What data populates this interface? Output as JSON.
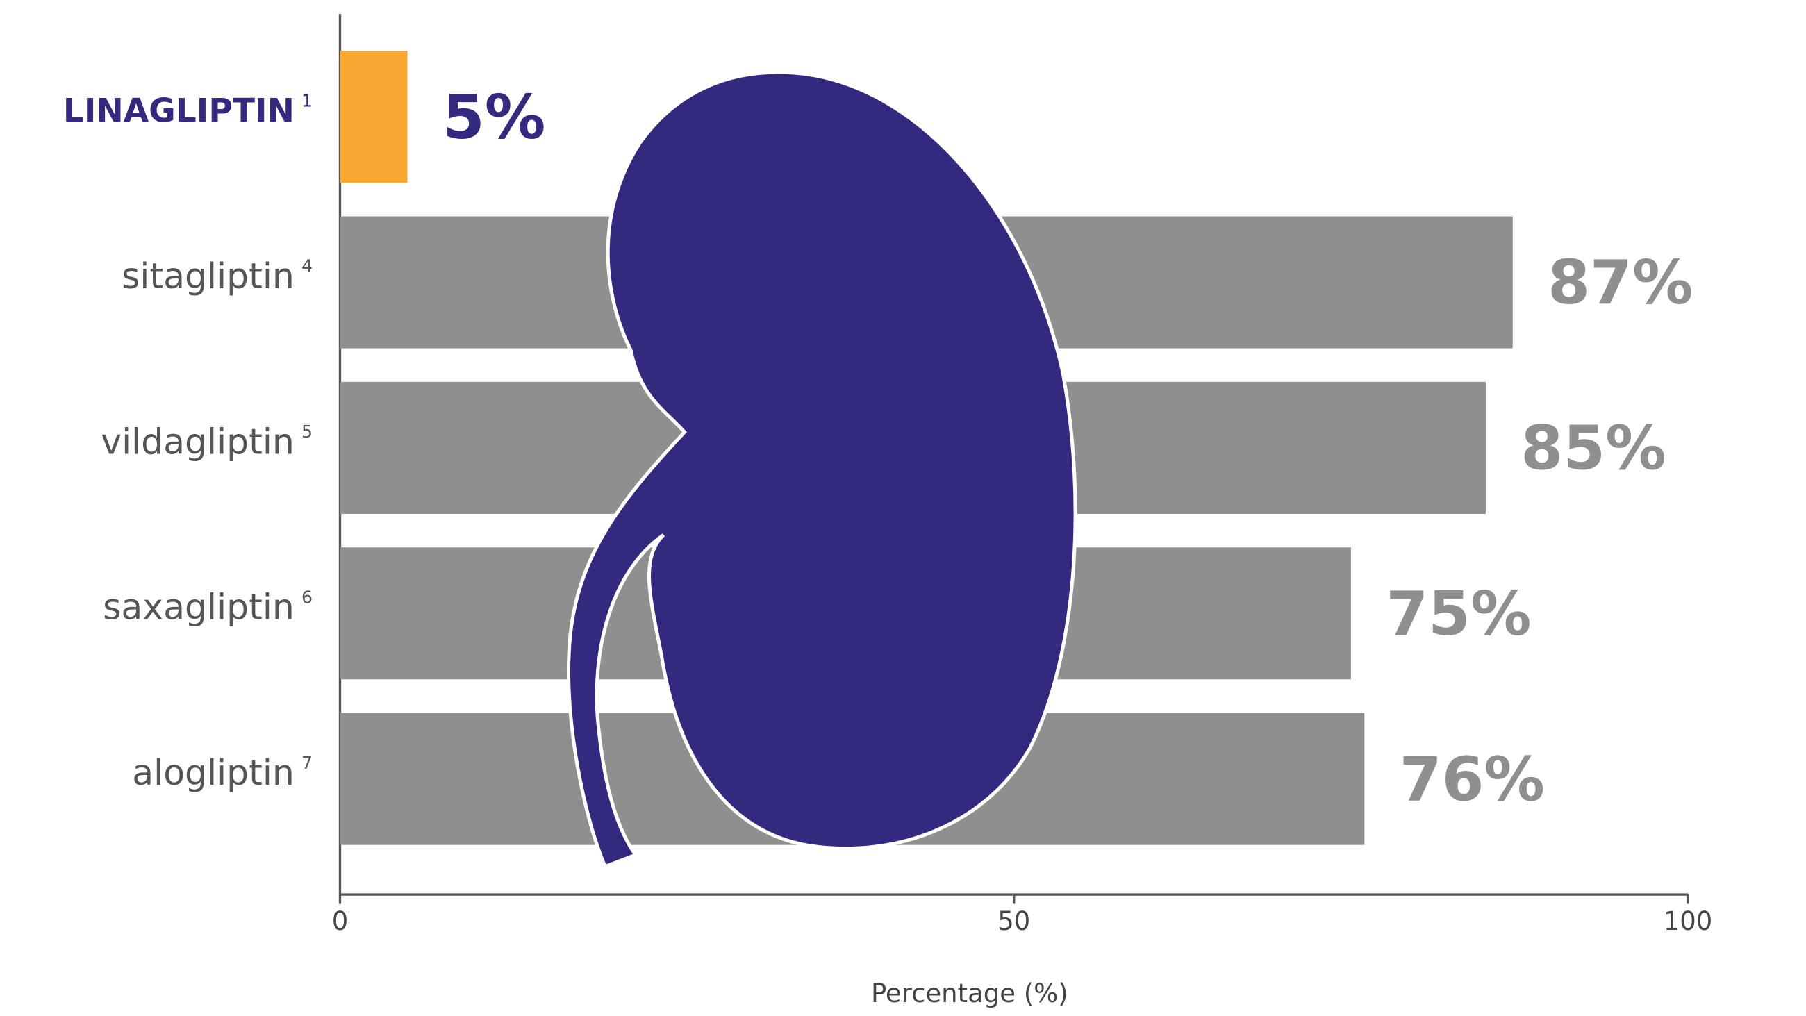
{
  "chart_data": {
    "type": "bar",
    "orientation": "horizontal",
    "categories": [
      "LINAGLIPTIN",
      "sitagliptin",
      "vildagliptin",
      "saxagliptin",
      "alogliptin"
    ],
    "superscripts": [
      "1",
      "4",
      "5",
      "6",
      "7"
    ],
    "values": [
      5,
      87,
      85,
      75,
      76
    ],
    "value_labels": [
      "5%",
      "87%",
      "85%",
      "75%",
      "76%"
    ],
    "colors": [
      "#f7a833",
      "#8e8f8e",
      "#8e8f8e",
      "#8e8f8e",
      "#8e8f8e"
    ],
    "xlim": [
      0,
      100
    ],
    "xticks": [
      0,
      50,
      100
    ],
    "x_label": "Percentage (%)"
  }
}
